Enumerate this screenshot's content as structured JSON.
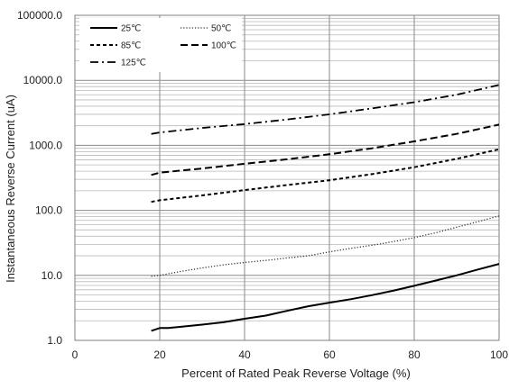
{
  "chart_data": {
    "type": "line",
    "title": "",
    "xlabel": "Percent of  Rated Peak Reverse Voltage (%)",
    "ylabel": "Instantaneous Reverse Current (uA)",
    "xlim": [
      0,
      100
    ],
    "ylim": [
      1,
      100000
    ],
    "yscale": "log",
    "grid": true,
    "legend_position": "top-left",
    "x_ticks": [
      0,
      20,
      40,
      60,
      80,
      100
    ],
    "x_tick_labels": [
      "0",
      "20",
      "40",
      "60",
      "80",
      "100"
    ],
    "y_ticks": [
      1,
      10,
      100,
      1000,
      10000,
      100000
    ],
    "y_tick_labels": [
      "1.0",
      "10.0",
      "100.0",
      "1000.0",
      "10000.0",
      "100000.0"
    ],
    "series": [
      {
        "name": "25℃",
        "style": "solid",
        "x": [
          18,
          20,
          22,
          25,
          30,
          35,
          40,
          45,
          50,
          55,
          60,
          65,
          70,
          75,
          80,
          85,
          90,
          95,
          100
        ],
        "y": [
          1.4,
          1.55,
          1.55,
          1.62,
          1.75,
          1.9,
          2.15,
          2.4,
          2.85,
          3.35,
          3.8,
          4.3,
          4.95,
          5.8,
          6.9,
          8.3,
          10.0,
          12.3,
          15.0
        ]
      },
      {
        "name": "50℃",
        "style": "dotted",
        "x": [
          18,
          20,
          25,
          30,
          35,
          40,
          45,
          50,
          55,
          60,
          65,
          70,
          75,
          80,
          85,
          90,
          95,
          100
        ],
        "y": [
          9.7,
          10.0,
          11.5,
          13.0,
          14.5,
          15.8,
          17.0,
          18.5,
          20.0,
          23.0,
          26.0,
          29.0,
          33.0,
          38.0,
          45.0,
          55.0,
          67.0,
          82.0
        ]
      },
      {
        "name": "85℃",
        "style": "short-dash",
        "x": [
          18,
          20,
          30,
          40,
          50,
          60,
          70,
          80,
          90,
          100
        ],
        "y": [
          135,
          143,
          170,
          205,
          245,
          290,
          360,
          460,
          620,
          870
        ]
      },
      {
        "name": "100℃",
        "style": "dash",
        "x": [
          18,
          20,
          30,
          40,
          50,
          60,
          70,
          80,
          90,
          100
        ],
        "y": [
          350,
          380,
          440,
          520,
          610,
          730,
          900,
          1150,
          1500,
          2080
        ]
      },
      {
        "name": "125℃",
        "style": "dash-dot",
        "x": [
          18,
          20,
          30,
          40,
          50,
          60,
          70,
          80,
          90,
          100
        ],
        "y": [
          1500,
          1580,
          1850,
          2120,
          2500,
          3000,
          3700,
          4600,
          6000,
          8500
        ]
      }
    ]
  }
}
